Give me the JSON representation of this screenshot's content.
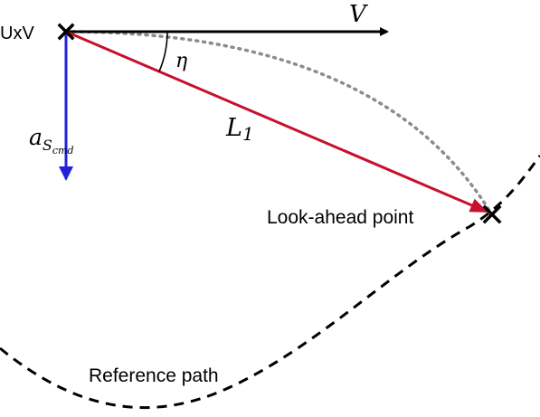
{
  "labels": {
    "vehicle": "UxV",
    "velocity": "V",
    "angle": "η",
    "distance_main": "L",
    "distance_sub": "1",
    "accel_main": "a",
    "accel_sub1": "S",
    "accel_sub2": "cmd",
    "lookahead": "Look-ahead point",
    "reference": "Reference path"
  },
  "colors": {
    "velocity_arrow": "#000000",
    "l1_arrow": "#c8102e",
    "accel_arrow": "#2222dd",
    "arc": "#8c8c8c",
    "reference_path": "#000000",
    "marker": "#000000"
  }
}
